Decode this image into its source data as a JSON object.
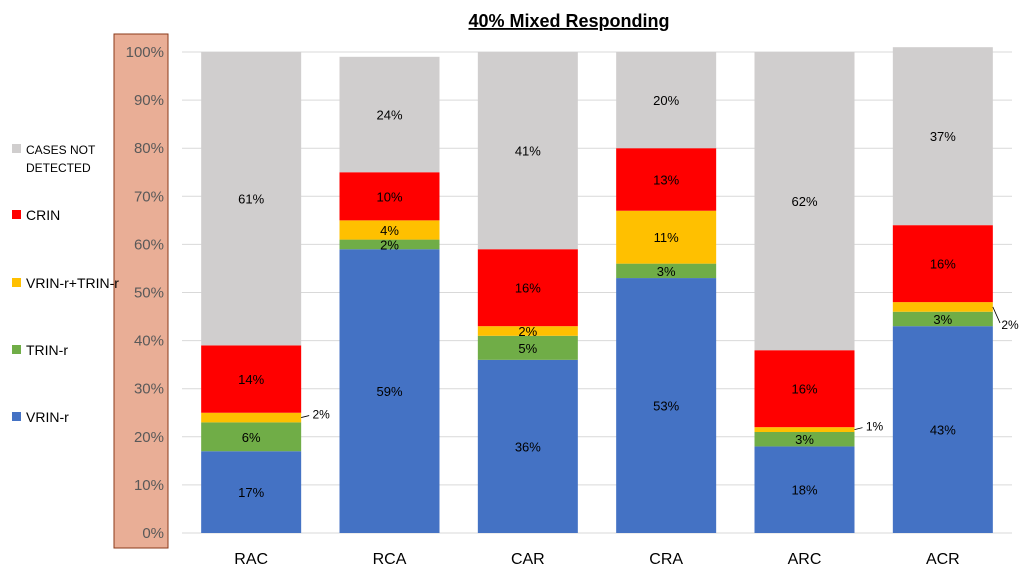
{
  "chart_data": {
    "type": "bar",
    "stacked": true,
    "title": "40% Mixed Responding",
    "categories": [
      "RAC",
      "RCA",
      "CAR",
      "CRA",
      "ARC",
      "ACR"
    ],
    "ylim": [
      0,
      100
    ],
    "yticks": [
      "0%",
      "10%",
      "20%",
      "30%",
      "40%",
      "50%",
      "60%",
      "70%",
      "80%",
      "90%",
      "100%"
    ],
    "grid": true,
    "legend_position": "left",
    "series": [
      {
        "name": "VRIN-r",
        "color": "#4472C4",
        "values": [
          17,
          59,
          36,
          53,
          18,
          43
        ],
        "labels": [
          "17%",
          "59%",
          "36%",
          "53%",
          "18%",
          "43%"
        ]
      },
      {
        "name": "TRIN-r",
        "color": "#70AD47",
        "values": [
          6,
          2,
          5,
          3,
          3,
          3
        ],
        "labels": [
          "6%",
          "2%",
          "5%",
          "3%",
          "3%",
          "3%"
        ]
      },
      {
        "name": "VRIN-r+TRIN-r",
        "color": "#FFC000",
        "values": [
          2,
          4,
          2,
          11,
          1,
          2
        ],
        "labels": [
          "2%",
          "4%",
          "2%",
          "11%",
          "1%",
          "2%"
        ]
      },
      {
        "name": "CRIN",
        "color": "#FF0000",
        "values": [
          14,
          10,
          16,
          13,
          16,
          16
        ],
        "labels": [
          "14%",
          "10%",
          "16%",
          "13%",
          "16%",
          "16%"
        ]
      },
      {
        "name": "CASES NOT DETECTED",
        "color": "#D0CECE",
        "values": [
          61,
          24,
          41,
          20,
          62,
          37
        ],
        "labels": [
          "61%",
          "24%",
          "41%",
          "20%",
          "62%",
          "37%"
        ]
      }
    ],
    "legend_order": [
      "CASES NOT DETECTED",
      "CRIN",
      "VRIN-r+TRIN-r",
      "TRIN-r",
      "VRIN-r"
    ],
    "axis_box_color": "#E9AE96"
  }
}
